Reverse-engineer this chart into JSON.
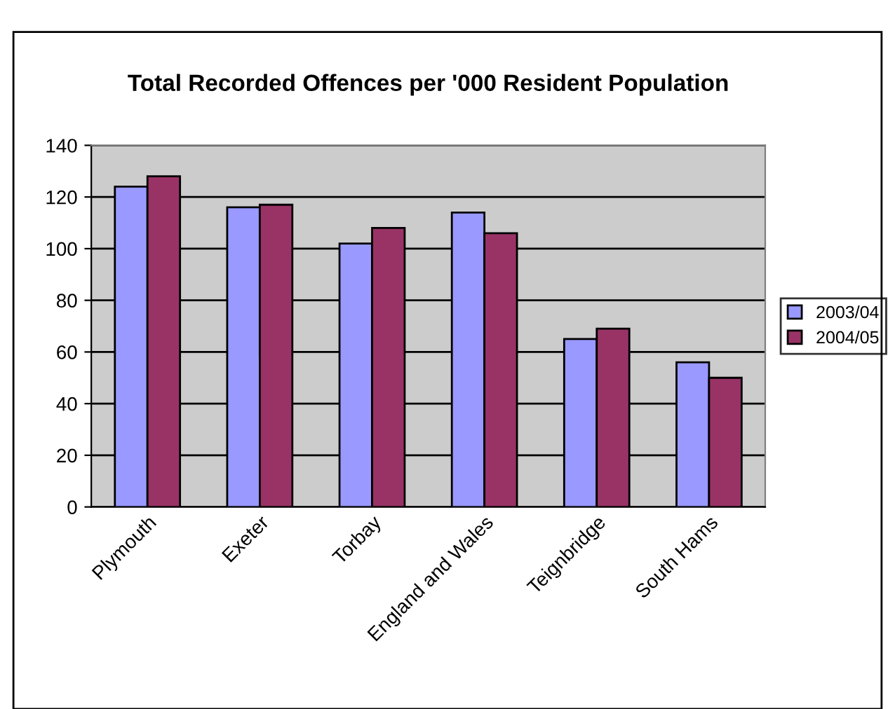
{
  "chart_data": {
    "type": "bar",
    "title": "Total Recorded Offences per '000 Resident Population",
    "categories": [
      "Plymouth",
      "Exeter",
      "Torbay",
      "England and Wales",
      "Teignbridge",
      "South Hams"
    ],
    "series": [
      {
        "name": "2003/04",
        "color": "#9999ff",
        "values": [
          124,
          116,
          102,
          114,
          65,
          56
        ]
      },
      {
        "name": "2004/05",
        "color": "#993366",
        "values": [
          128,
          117,
          108,
          106,
          69,
          50
        ]
      }
    ],
    "ylim": [
      0,
      140
    ],
    "yticks": [
      0,
      20,
      40,
      60,
      80,
      100,
      120,
      140
    ],
    "grid": "y",
    "legend": "right"
  }
}
